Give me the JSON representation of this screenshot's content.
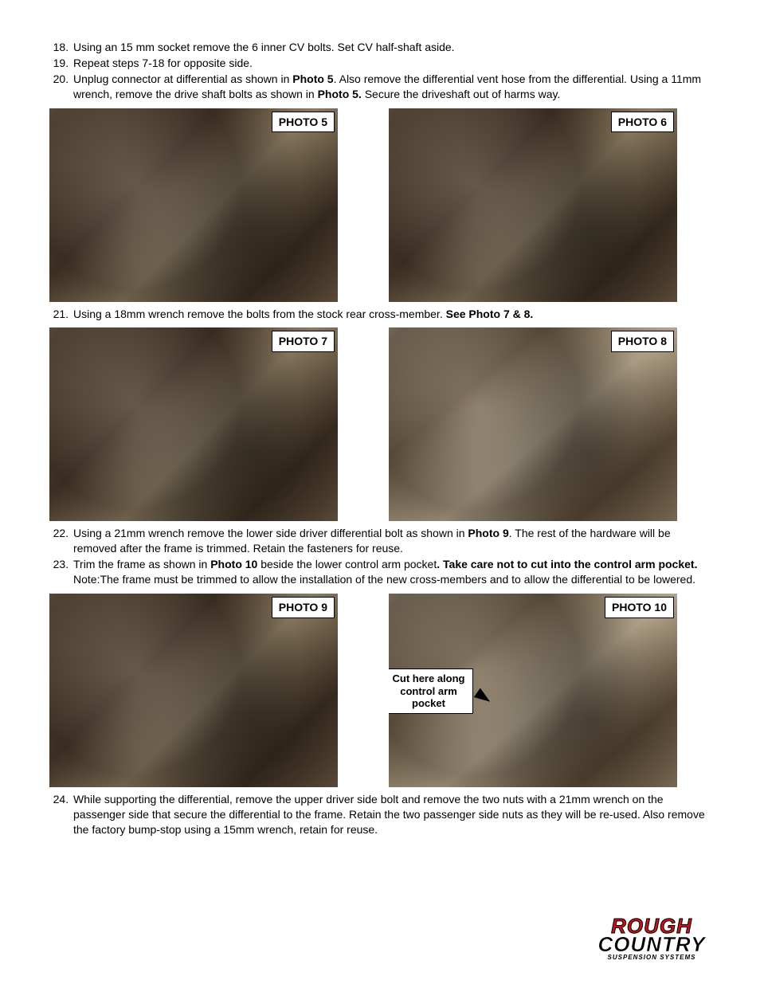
{
  "steps_a": [
    {
      "n": 18,
      "html": "Using an 15 mm socket remove the 6 inner CV bolts. Set CV half-shaft aside."
    },
    {
      "n": 19,
      "html": "Repeat steps 7-18 for opposite side."
    },
    {
      "n": 20,
      "html": "Unplug connector at differential as shown in <b>Photo 5</b>. Also remove the differential vent hose from the differential. Using a 11mm wrench, remove the drive shaft bolts as shown in <b>Photo 5.</b> Secure the driveshaft out of harms way."
    }
  ],
  "steps_b": [
    {
      "n": 21,
      "html": "Using a 18mm wrench remove the bolts from the stock rear cross-member. <b>See Photo 7 & 8.</b>"
    }
  ],
  "steps_c": [
    {
      "n": 22,
      "html": "Using a 21mm wrench remove the lower side driver differential bolt as shown in <b>Photo 9</b>. The rest of the hardware will be removed after the frame is trimmed. Retain the fasteners for reuse."
    },
    {
      "n": 23,
      "html": "Trim the frame as shown in <b>Photo 10</b> beside the lower control arm pocket<b>. Take care not to cut into the control arm pocket.</b>  Note:The frame must be trimmed to allow the installation of the new cross-members and to allow the differential to be lowered."
    }
  ],
  "steps_d": [
    {
      "n": 24,
      "html": "While supporting the differential, remove the upper driver side bolt and remove the two nuts with a 21mm wrench on the passenger side that secure the differential to the frame. Retain the two passenger side nuts as they will be re-used. Also remove the factory bump-stop using a 15mm wrench, retain for reuse."
    }
  ],
  "photos": {
    "p5": "PHOTO 5",
    "p6": "PHOTO 6",
    "p7": "PHOTO 7",
    "p8": "PHOTO 8",
    "p9": "PHOTO 9",
    "p10": "PHOTO 10"
  },
  "callout_cut": "Cut here\nalong control\narm pocket",
  "logo": {
    "l1": "ROUGH",
    "l2": "COUNTRY",
    "l3": "SUSPENSION SYSTEMS"
  }
}
